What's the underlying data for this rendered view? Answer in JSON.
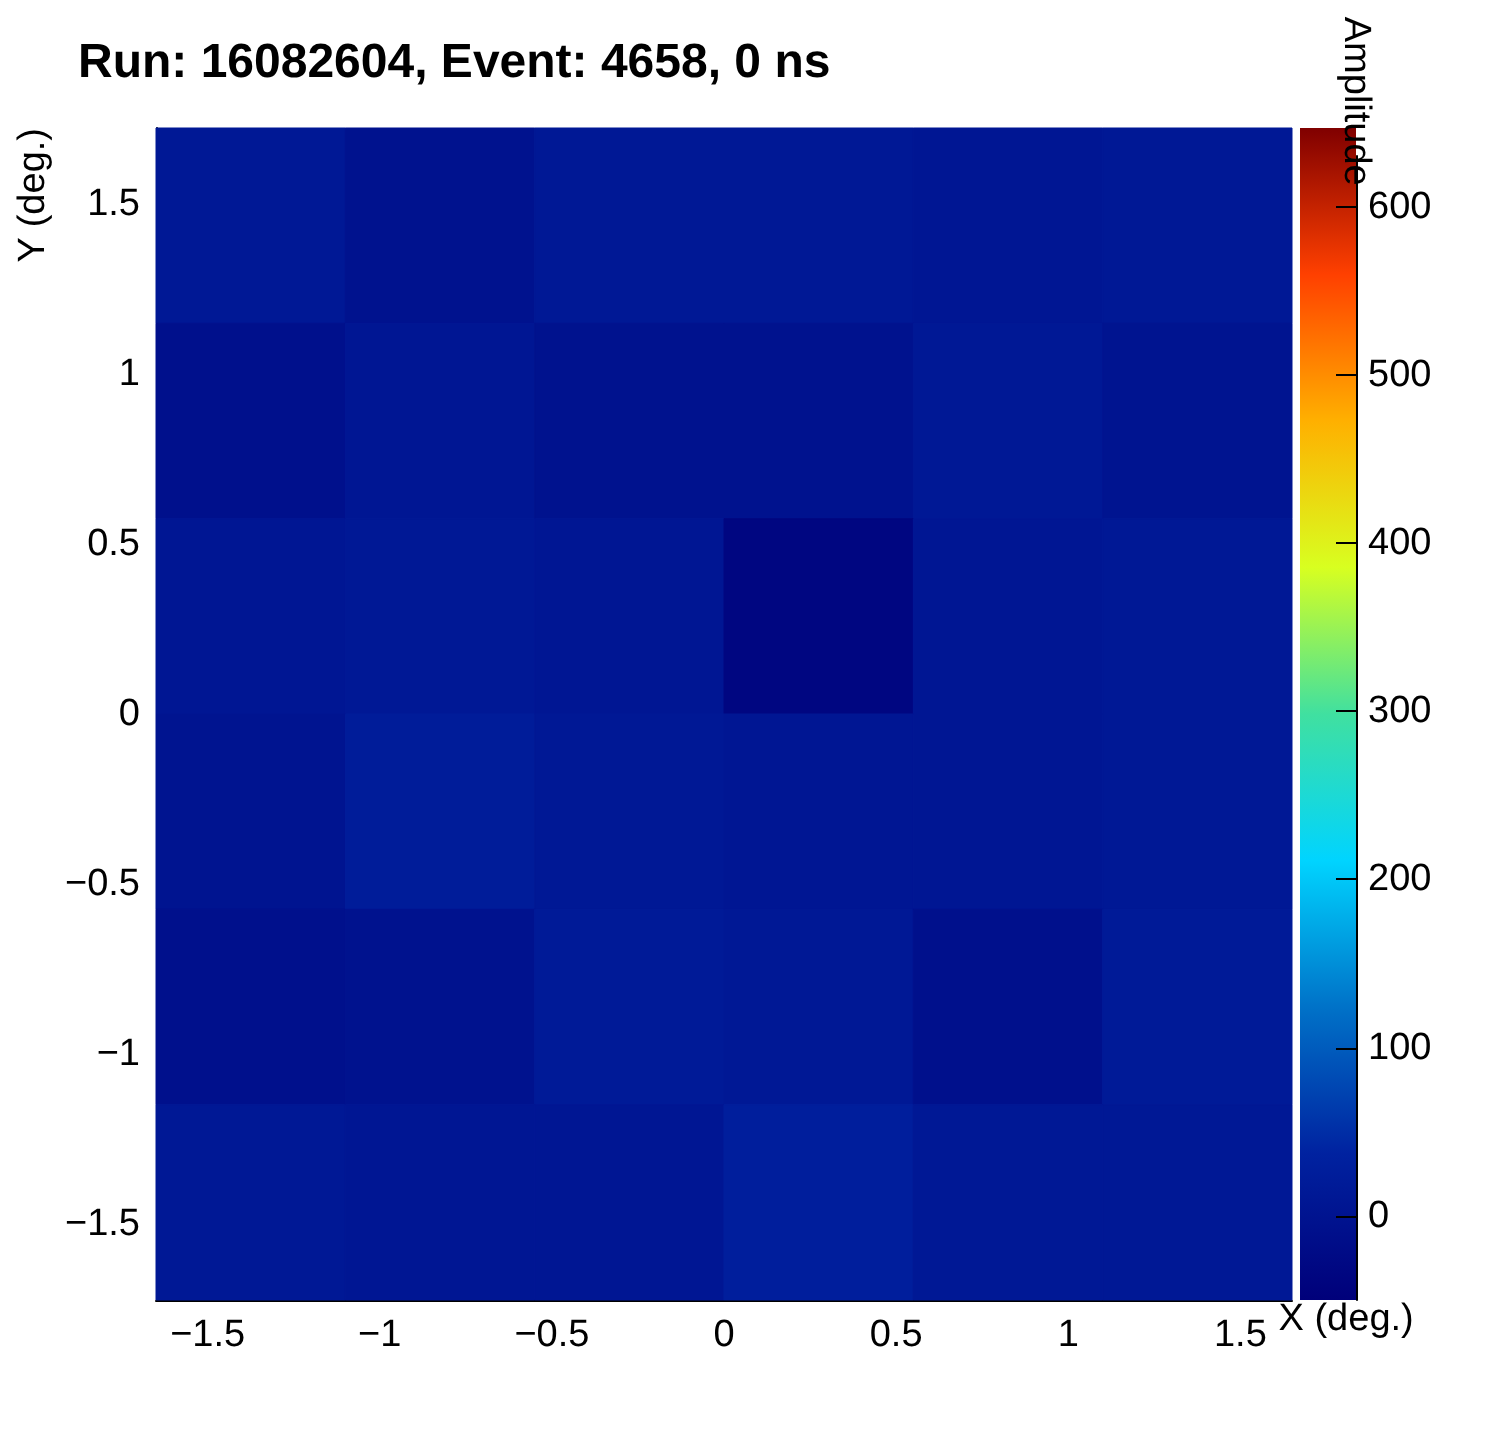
{
  "chart_data": {
    "type": "heatmap",
    "title": "Run: 16082604, Event: 4658, 0 ns",
    "xlabel": "X (deg.)",
    "ylabel": "Y (deg.)",
    "clabel": "Amplitude",
    "cells": [
      [
        10,
        -5,
        10,
        10,
        5,
        10
      ],
      [
        -10,
        5,
        -5,
        -5,
        10,
        0
      ],
      [
        5,
        10,
        5,
        -35,
        5,
        10
      ],
      [
        0,
        20,
        10,
        5,
        5,
        10
      ],
      [
        -10,
        -5,
        15,
        10,
        -10,
        15
      ],
      [
        10,
        5,
        5,
        25,
        10,
        10
      ]
    ],
    "xlim": [
      -1.65,
      1.65
    ],
    "ylim": [
      -1.725,
      1.725
    ],
    "xticks": [
      {
        "value": -1.5,
        "label": "−1.5"
      },
      {
        "value": -1,
        "label": "−1"
      },
      {
        "value": -0.5,
        "label": "−0.5"
      },
      0,
      0.5,
      1,
      1.5
    ],
    "yticks": [
      {
        "value": -1.5,
        "label": "−1.5"
      },
      {
        "value": -1,
        "label": "−1"
      },
      {
        "value": -0.5,
        "label": "−0.5"
      },
      0,
      0.5,
      1,
      1.5
    ],
    "clim": [
      -50,
      630
    ],
    "cticks": [
      0,
      100,
      200,
      300,
      400,
      500,
      600
    ]
  }
}
